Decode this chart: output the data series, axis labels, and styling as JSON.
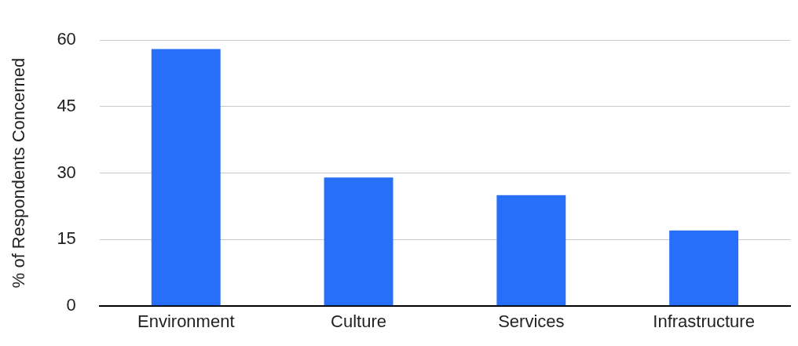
{
  "chart_data": {
    "type": "bar",
    "ylabel": "% of Respondents Concerned",
    "categories": [
      "Environment",
      "Culture",
      "Services",
      "Infrastructure"
    ],
    "values": [
      58,
      29,
      25,
      17
    ],
    "color": "#276ef9",
    "ylim": [
      0,
      60
    ],
    "yticks": [
      0,
      15,
      30,
      45,
      60
    ],
    "grid": "y"
  }
}
